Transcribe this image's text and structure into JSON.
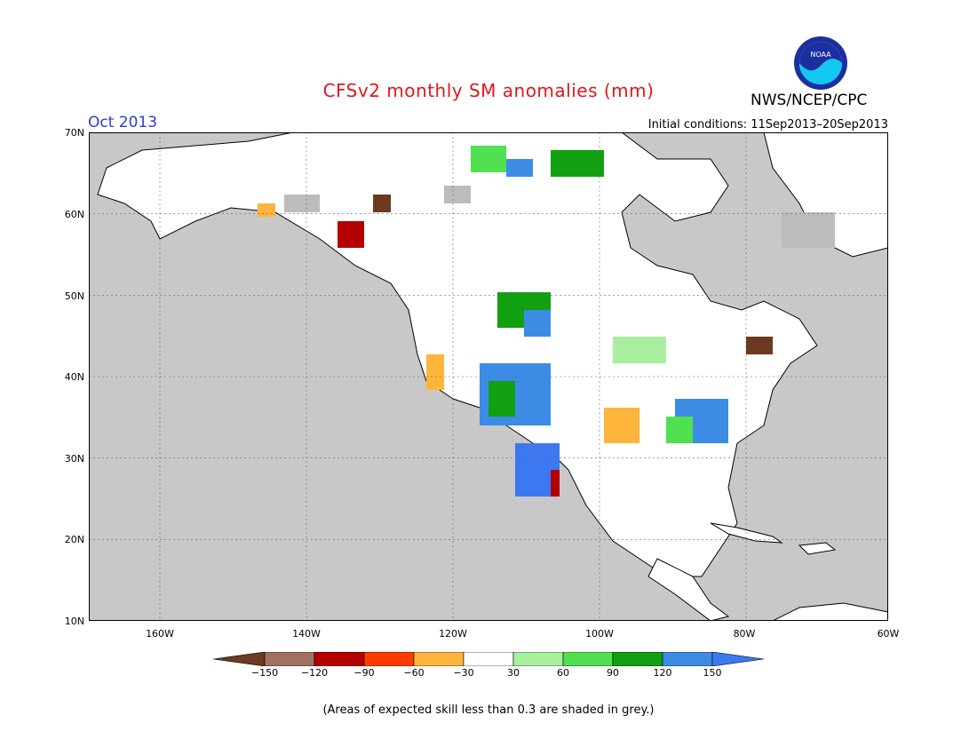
{
  "header": {
    "title": "CFSv2 monthly SM anomalies (mm)",
    "org": "NWS/NCEP/CPC",
    "month": "Oct 2013",
    "initial_conditions": "Initial conditions: 11Sep2013–20Sep2013",
    "logo_text": "NOAA"
  },
  "map": {
    "lat_labels": [
      "70N",
      "60N",
      "50N",
      "40N",
      "30N",
      "20N",
      "10N"
    ],
    "lon_labels": [
      "160W",
      "140W",
      "120W",
      "100W",
      "80W",
      "60W"
    ],
    "ocean_color": "#c8c8c8",
    "land_color": "#ffffff"
  },
  "colorbar": {
    "labels": [
      "−150",
      "−120",
      "−90",
      "−60",
      "−30",
      "30",
      "60",
      "90",
      "120",
      "150"
    ],
    "colors": [
      "#6b3a20",
      "#a07060",
      "#b40000",
      "#ff3c00",
      "#ffb43c",
      "#ffffff",
      "#a8f0a0",
      "#50e050",
      "#10a010",
      "#3c8ce6",
      "#3c78f0"
    ]
  },
  "footnote": "(Areas of expected skill less than 0.3 are shaded in grey.)"
}
